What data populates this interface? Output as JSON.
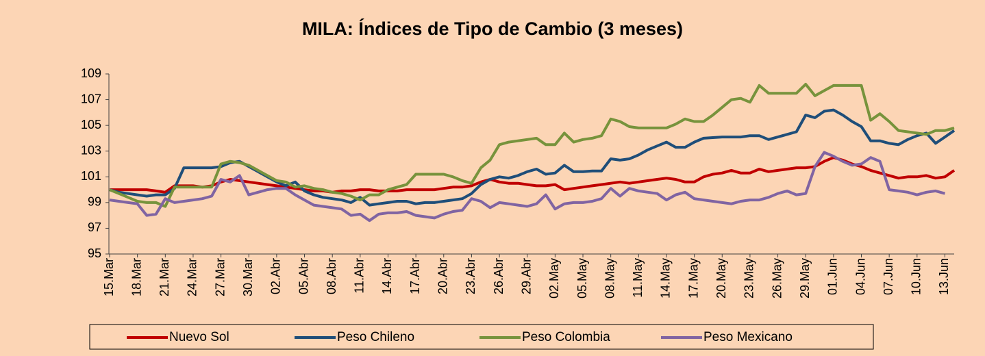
{
  "chart_data": {
    "type": "line",
    "title": "MILA: Índices de Tipo de Cambio (3 meses)",
    "categories": [
      "15.Mar",
      null,
      null,
      "18.Mar",
      null,
      null,
      "21.Mar",
      null,
      null,
      "24.Mar",
      null,
      null,
      "27.Mar",
      null,
      null,
      "30.Mar",
      null,
      null,
      "02.Abr",
      null,
      null,
      "05.Abr",
      null,
      null,
      "08.Abr",
      null,
      null,
      "11.Abr",
      null,
      null,
      "14.Abr",
      null,
      null,
      "17.Abr",
      null,
      null,
      "20.Abr",
      null,
      null,
      "23.Abr",
      null,
      null,
      "26.Abr",
      null,
      null,
      "29.Abr",
      null,
      null,
      "02.May",
      null,
      null,
      "05.May",
      null,
      null,
      "08.May",
      null,
      null,
      "11.May",
      null,
      null,
      "14.May",
      null,
      null,
      "17.May",
      null,
      null,
      "20.May",
      null,
      null,
      "23.May",
      null,
      null,
      "26.May",
      null,
      null,
      "29.May",
      null,
      null,
      "01.Jun",
      null,
      null,
      "04.Jun",
      null,
      null,
      "07.Jun",
      null,
      null,
      "10.Jun",
      null,
      null,
      "13.Jun",
      null
    ],
    "series": [
      {
        "name": "Nuevo Sol",
        "color": "#C00000",
        "values": [
          100,
          100,
          100,
          100,
          100,
          99.9,
          99.8,
          100.3,
          100.3,
          100.3,
          100.2,
          100.3,
          100.6,
          100.8,
          100.7,
          100.6,
          100.5,
          100.4,
          100.3,
          100.2,
          100.1,
          100.0,
          99.9,
          99.9,
          99.8,
          99.9,
          99.9,
          100.0,
          100.0,
          99.9,
          99.9,
          99.9,
          100.0,
          100.0,
          100.0,
          100.0,
          100.1,
          100.2,
          100.2,
          100.3,
          100.6,
          100.8,
          100.6,
          100.5,
          100.5,
          100.4,
          100.3,
          100.3,
          100.4,
          100.0,
          100.1,
          100.2,
          100.3,
          100.4,
          100.5,
          100.6,
          100.5,
          100.6,
          100.7,
          100.8,
          100.9,
          100.8,
          100.6,
          100.6,
          101.0,
          101.2,
          101.3,
          101.5,
          101.3,
          101.3,
          101.6,
          101.4,
          101.5,
          101.6,
          101.7,
          101.7,
          101.8,
          102.2,
          102.5,
          102.3,
          102.0,
          101.8,
          101.5,
          101.3,
          101.1,
          100.9,
          101.0,
          101.0,
          101.1,
          100.9,
          101.0,
          101.5
        ]
      },
      {
        "name": "Peso Chileno",
        "color": "#1F4E79",
        "values": [
          100,
          99.8,
          99.7,
          99.6,
          99.5,
          99.6,
          99.6,
          100.1,
          101.7,
          101.7,
          101.7,
          101.7,
          101.8,
          102.1,
          102.2,
          101.8,
          101.4,
          101.0,
          100.6,
          100.3,
          100.6,
          99.9,
          99.6,
          99.4,
          99.3,
          99.2,
          99.0,
          99.4,
          98.8,
          98.9,
          99.0,
          99.1,
          99.1,
          98.9,
          99.0,
          99.0,
          99.1,
          99.2,
          99.3,
          99.7,
          100.4,
          100.8,
          101.0,
          100.9,
          101.1,
          101.4,
          101.6,
          101.2,
          101.3,
          101.9,
          101.4,
          101.4,
          101.45,
          101.45,
          102.4,
          102.3,
          102.4,
          102.7,
          103.1,
          103.4,
          103.7,
          103.3,
          103.3,
          103.7,
          104.0,
          104.05,
          104.1,
          104.1,
          104.1,
          104.2,
          104.2,
          103.9,
          104.1,
          104.3,
          104.5,
          105.8,
          105.6,
          106.1,
          106.2,
          105.8,
          105.3,
          104.9,
          103.8,
          103.8,
          103.6,
          103.5,
          103.9,
          104.2,
          104.4,
          103.6,
          104.1,
          104.6
        ]
      },
      {
        "name": "Peso Colombia",
        "color": "#77933C",
        "values": [
          100,
          99.7,
          99.4,
          99.1,
          99.0,
          99.0,
          98.7,
          100.2,
          100.2,
          100.2,
          100.2,
          100.2,
          102.0,
          102.2,
          102.1,
          101.9,
          101.5,
          101.1,
          100.7,
          100.6,
          100.2,
          100.3,
          100.1,
          100.0,
          99.8,
          99.7,
          99.5,
          99.2,
          99.6,
          99.6,
          100.0,
          100.2,
          100.4,
          101.2,
          101.2,
          101.2,
          101.2,
          101.0,
          100.7,
          100.5,
          101.7,
          102.3,
          103.5,
          103.7,
          103.8,
          103.9,
          104.0,
          103.5,
          103.5,
          104.4,
          103.7,
          103.9,
          104.0,
          104.2,
          105.5,
          105.3,
          104.9,
          104.8,
          104.8,
          104.8,
          104.8,
          105.1,
          105.5,
          105.3,
          105.3,
          105.8,
          106.4,
          107.0,
          107.1,
          106.8,
          108.1,
          107.5,
          107.5,
          107.5,
          107.5,
          108.2,
          107.3,
          107.7,
          108.1,
          108.1,
          108.1,
          108.1,
          105.4,
          105.9,
          105.3,
          104.6,
          104.5,
          104.4,
          104.3,
          104.6,
          104.6,
          104.8
        ]
      },
      {
        "name": "Peso Mexicano",
        "color": "#8064A2",
        "values": [
          99.2,
          99.1,
          99.0,
          98.9,
          98.0,
          98.1,
          99.3,
          99.0,
          99.1,
          99.2,
          99.3,
          99.5,
          100.8,
          100.6,
          101.1,
          99.6,
          99.8,
          100.0,
          100.1,
          100.1,
          99.6,
          99.2,
          98.8,
          98.7,
          98.6,
          98.5,
          98.0,
          98.1,
          97.6,
          98.1,
          98.2,
          98.2,
          98.3,
          98.0,
          97.9,
          97.8,
          98.1,
          98.3,
          98.4,
          99.3,
          99.1,
          98.6,
          99.0,
          98.9,
          98.8,
          98.7,
          98.9,
          99.6,
          98.5,
          98.9,
          99.0,
          99.0,
          99.1,
          99.3,
          100.1,
          99.5,
          100.1,
          99.9,
          99.8,
          99.7,
          99.2,
          99.6,
          99.8,
          99.3,
          99.2,
          99.1,
          99.0,
          98.9,
          99.1,
          99.2,
          99.2,
          99.4,
          99.7,
          99.9,
          99.6,
          99.7,
          101.8,
          102.9,
          102.6,
          102.2,
          101.9,
          102.0,
          102.5,
          102.2,
          100.0,
          99.9,
          99.8,
          99.6,
          99.8,
          99.9,
          99.7,
          null
        ]
      }
    ],
    "ylim": [
      95,
      109
    ],
    "yticks": [
      95,
      97,
      99,
      101,
      103,
      105,
      107,
      109
    ],
    "grid": false,
    "legend": "bottom"
  }
}
